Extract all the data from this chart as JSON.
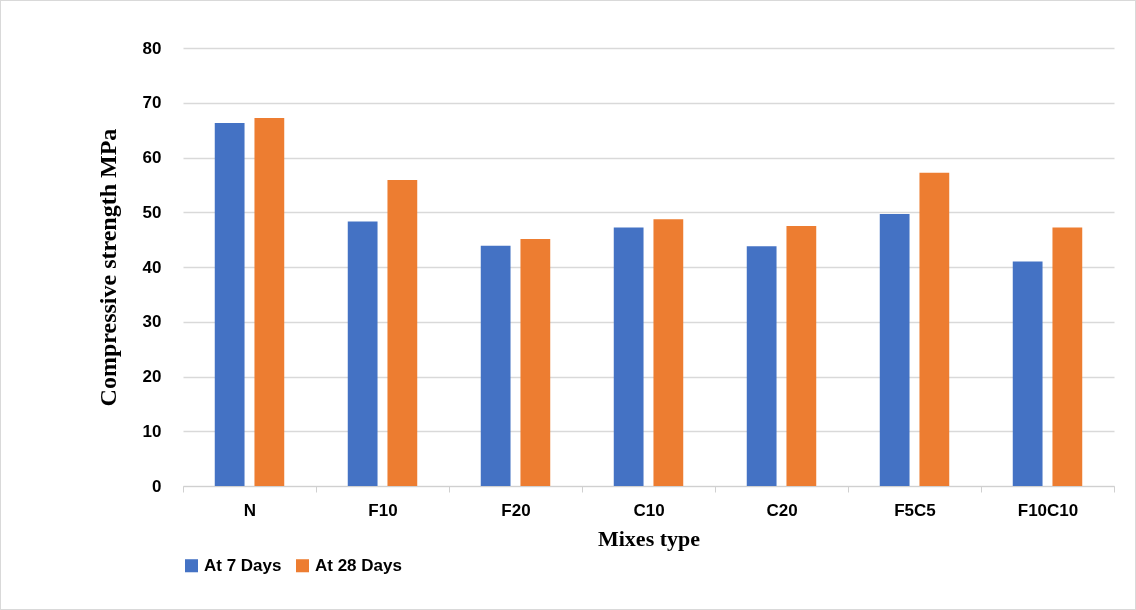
{
  "chart_data": {
    "type": "bar",
    "xlabel": "Mixes type",
    "ylabel": "Compressive strength MPa",
    "categories": [
      "N",
      "F10",
      "F20",
      "C10",
      "C20",
      "F5C5",
      "F10C10"
    ],
    "series": [
      {
        "name": "At 7 Days",
        "color": "#4472c4",
        "values": [
          66.3,
          48.3,
          43.9,
          47.2,
          43.8,
          49.7,
          41.0
        ]
      },
      {
        "name": "At 28 Days",
        "color": "#ed7d31",
        "values": [
          67.2,
          55.9,
          45.1,
          48.7,
          47.5,
          57.2,
          47.2
        ]
      }
    ],
    "ylim": [
      0,
      80
    ],
    "yticks": [
      0,
      10,
      20,
      30,
      40,
      50,
      60,
      70,
      80
    ],
    "grid": "y",
    "legend": "bottom"
  }
}
